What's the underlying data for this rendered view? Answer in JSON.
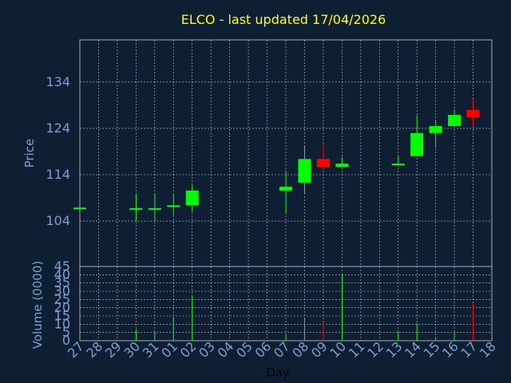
{
  "chart_data": {
    "type": "candlestick",
    "title": "ELCO - last updated 17/04/2026",
    "x_label": "Day",
    "y_label": "Price",
    "volume_label": "Volume (0000)",
    "categories": [
      "27",
      "28",
      "29",
      "30",
      "31",
      "01",
      "02",
      "03",
      "04",
      "05",
      "06",
      "07",
      "08",
      "09",
      "10",
      "11",
      "12",
      "13",
      "14",
      "15",
      "16",
      "17",
      "18"
    ],
    "open": [
      106.9,
      null,
      null,
      106.7,
      106.7,
      107.3,
      107.4,
      null,
      null,
      null,
      null,
      110.6,
      112.3,
      117.4,
      115.7,
      null,
      null,
      116.1,
      118.0,
      123.0,
      124.5,
      128.0,
      null
    ],
    "high": [
      106.9,
      null,
      null,
      110.0,
      110.0,
      109.9,
      112.0,
      null,
      null,
      null,
      null,
      114.9,
      120.2,
      120.6,
      117.8,
      null,
      null,
      118.0,
      126.8,
      125.9,
      128.1,
      130.4,
      null
    ],
    "low": [
      106.9,
      null,
      null,
      104.0,
      104.0,
      105.2,
      106.1,
      null,
      null,
      null,
      null,
      105.7,
      110.0,
      115.6,
      115.7,
      null,
      null,
      116.1,
      118.0,
      119.9,
      124.5,
      124.2,
      null
    ],
    "close": [
      106.9,
      null,
      null,
      106.8,
      106.8,
      107.4,
      110.6,
      null,
      null,
      null,
      null,
      111.4,
      117.4,
      115.6,
      116.4,
      null,
      null,
      116.4,
      123.0,
      124.5,
      126.9,
      126.4,
      null
    ],
    "volume": [
      1,
      null,
      null,
      6.8,
      5.3,
      14.5,
      27.5,
      null,
      null,
      null,
      null,
      4.3,
      14,
      11,
      40.6,
      null,
      null,
      5.3,
      10.6,
      2,
      5.3,
      22.7,
      null
    ],
    "up_color": "#00ff00",
    "down_color": "#ff0000",
    "ylim": [
      94.2,
      143.1
    ],
    "yticks": [
      104,
      114,
      124,
      134
    ],
    "volume_ylim": [
      0,
      45
    ],
    "volume_yticks": [
      0,
      5,
      10,
      15,
      20,
      25,
      30,
      35,
      40,
      45
    ],
    "grid": true
  }
}
